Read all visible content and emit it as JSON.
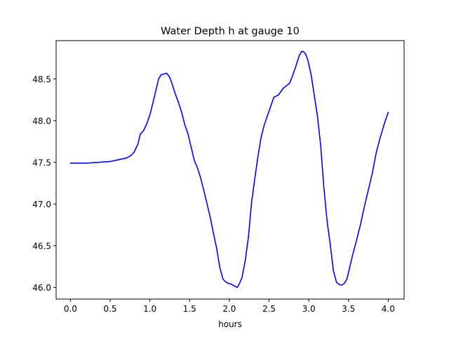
{
  "chart_data": {
    "type": "line",
    "title": "Water Depth h at gauge 10",
    "xlabel": "hours",
    "ylabel": "",
    "xlim": [
      -0.18,
      4.2
    ],
    "ylim": [
      45.86,
      48.96
    ],
    "xticks": [
      0.0,
      0.5,
      1.0,
      1.5,
      2.0,
      2.5,
      3.0,
      3.5,
      4.0
    ],
    "xtick_labels": [
      "0.0",
      "0.5",
      "1.0",
      "1.5",
      "2.0",
      "2.5",
      "3.0",
      "3.5",
      "4.0"
    ],
    "yticks": [
      46.0,
      46.5,
      47.0,
      47.5,
      48.0,
      48.5
    ],
    "ytick_labels": [
      "46.0",
      "46.5",
      "47.0",
      "47.5",
      "48.0",
      "48.5"
    ],
    "grid": false,
    "legend": "none",
    "series": [
      {
        "color": "#0000ff",
        "x": [
          0.0,
          0.2,
          0.35,
          0.5,
          0.6,
          0.7,
          0.76,
          0.8,
          0.85,
          0.88,
          0.92,
          0.96,
          1.0,
          1.04,
          1.08,
          1.11,
          1.14,
          1.18,
          1.21,
          1.25,
          1.28,
          1.32,
          1.36,
          1.4,
          1.44,
          1.48,
          1.52,
          1.56,
          1.6,
          1.64,
          1.68,
          1.72,
          1.76,
          1.8,
          1.84,
          1.88,
          1.92,
          1.95,
          1.98,
          2.02,
          2.06,
          2.1,
          2.13,
          2.16,
          2.2,
          2.24,
          2.28,
          2.32,
          2.36,
          2.4,
          2.44,
          2.48,
          2.52,
          2.56,
          2.6,
          2.62,
          2.65,
          2.68,
          2.72,
          2.76,
          2.8,
          2.84,
          2.88,
          2.91,
          2.93,
          2.96,
          2.99,
          3.03,
          3.07,
          3.11,
          3.15,
          3.19,
          3.23,
          3.27,
          3.31,
          3.35,
          3.39,
          3.42,
          3.45,
          3.48,
          3.51,
          3.55,
          3.6,
          3.65,
          3.7,
          3.75,
          3.8,
          3.85,
          3.9,
          3.95,
          4.0
        ],
        "y": [
          47.49,
          47.49,
          47.5,
          47.51,
          47.53,
          47.55,
          47.58,
          47.62,
          47.72,
          47.84,
          47.88,
          47.96,
          48.07,
          48.22,
          48.38,
          48.5,
          48.55,
          48.56,
          48.57,
          48.52,
          48.44,
          48.32,
          48.22,
          48.1,
          47.95,
          47.84,
          47.68,
          47.52,
          47.43,
          47.31,
          47.16,
          47.0,
          46.84,
          46.65,
          46.47,
          46.24,
          46.1,
          46.07,
          46.05,
          46.04,
          46.02,
          46.0,
          46.05,
          46.12,
          46.32,
          46.6,
          47.02,
          47.3,
          47.57,
          47.8,
          47.95,
          48.06,
          48.17,
          48.28,
          48.3,
          48.31,
          48.35,
          48.39,
          48.42,
          48.45,
          48.55,
          48.66,
          48.78,
          48.83,
          48.83,
          48.8,
          48.72,
          48.55,
          48.3,
          48.05,
          47.7,
          47.2,
          46.8,
          46.52,
          46.2,
          46.06,
          46.03,
          46.03,
          46.05,
          46.1,
          46.22,
          46.38,
          46.56,
          46.75,
          46.97,
          47.17,
          47.37,
          47.62,
          47.8,
          47.96,
          48.1
        ]
      }
    ]
  }
}
